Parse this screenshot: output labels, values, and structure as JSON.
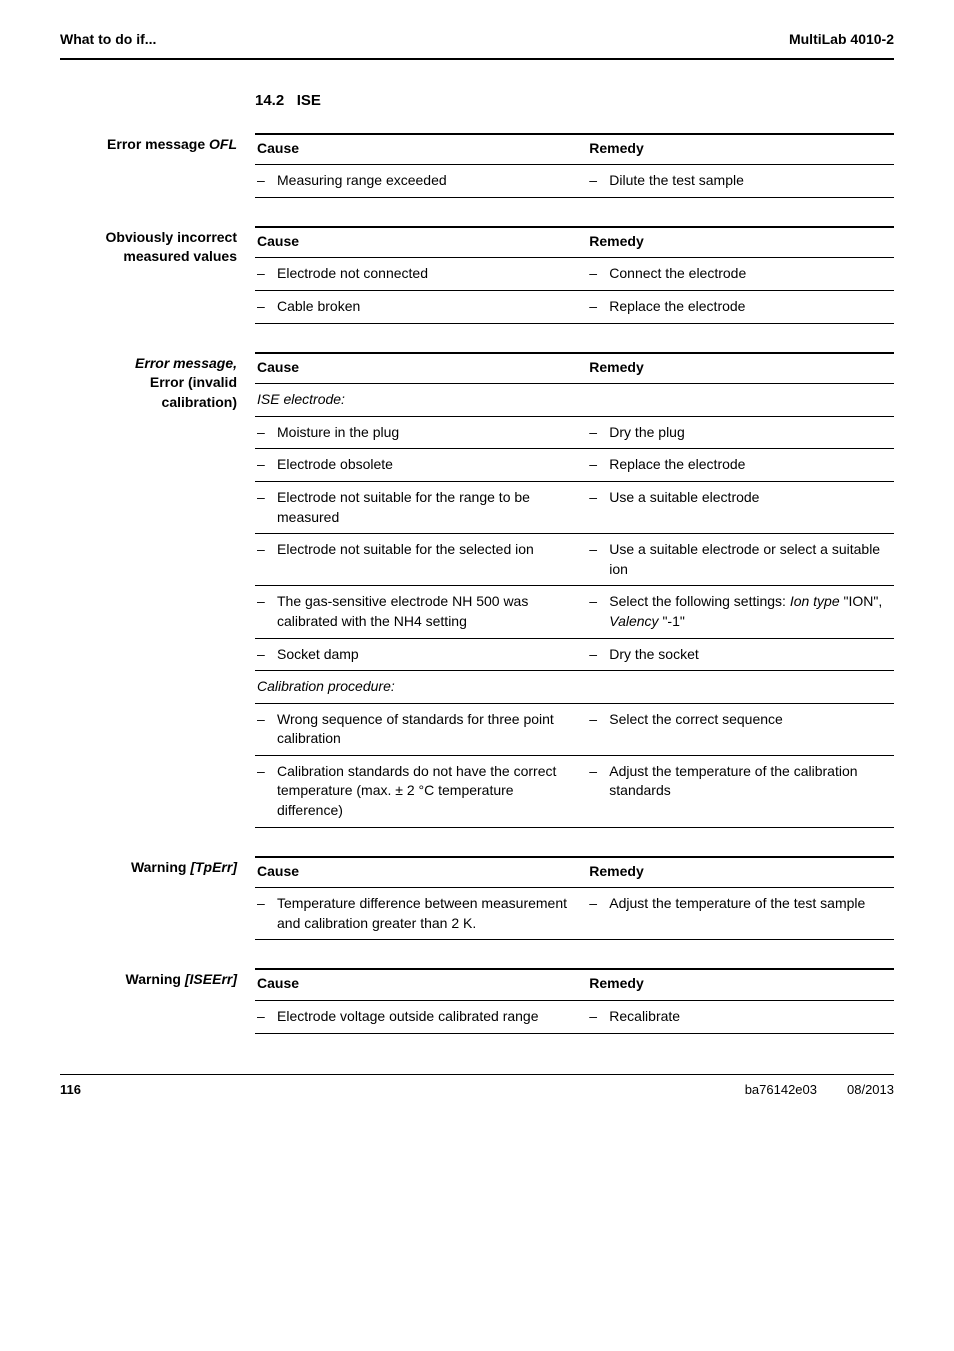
{
  "header": {
    "left": "What to do if...",
    "right": "MultiLab 4010-2"
  },
  "section": {
    "number": "14.2",
    "title": "ISE"
  },
  "blocks": [
    {
      "side_html": "Error message <span class=\"italic\">OFL</span>",
      "headers": {
        "cause": "Cause",
        "remedy": "Remedy"
      },
      "rows": [
        {
          "cause": "Measuring range exceeded",
          "remedy": "Dilute the test sample"
        }
      ]
    },
    {
      "side_html": "Obviously incorrect measured values",
      "headers": {
        "cause": "Cause",
        "remedy": "Remedy"
      },
      "rows": [
        {
          "cause": "Electrode not connected",
          "remedy": "Connect the electrode"
        },
        {
          "cause": "Cable broken",
          "remedy": "Replace the electrode"
        }
      ]
    },
    {
      "side_html": "<span class=\"italic\">Error message,</span><br><span class=\"italic\"></span>Error (invalid calibration)",
      "side_lines": [
        {
          "text": "Error message,",
          "italic": true
        },
        {
          "text": "Error (invalid",
          "italic": false
        },
        {
          "text": "calibration)",
          "italic": false
        }
      ],
      "headers": {
        "cause": "Cause",
        "remedy": "Remedy"
      },
      "subhead1": "ISE electrode:",
      "rows1": [
        {
          "cause": "Moisture in the plug",
          "remedy": "Dry the plug"
        },
        {
          "cause": "Electrode obsolete",
          "remedy": "Replace the electrode"
        },
        {
          "cause": "Electrode not suitable for the range to be measured",
          "remedy": "Use a suitable electrode"
        },
        {
          "cause": "Electrode not suitable for the selected ion",
          "remedy": "Use a suitable electrode or select a suitable ion"
        },
        {
          "cause_html": "The gas-sensitive electrode NH 500 was calibrated with the NH4 setting",
          "remedy_html": "Select the following settings: <span class=\"em\">Ion type</span> \"ION\", <span class=\"em\">Valency</span> \"-1\""
        },
        {
          "cause": "Socket damp",
          "remedy": "Dry the socket"
        }
      ],
      "subhead2": "Calibration procedure:",
      "rows2": [
        {
          "cause": "Wrong sequence of standards for three point calibration",
          "remedy": "Select the correct sequence"
        },
        {
          "cause": "Calibration standards do not have the correct temperature (max. ± 2 °C temperature difference)",
          "remedy": "Adjust the temperature of the calibration standards"
        }
      ]
    },
    {
      "side_html": "Warning <span class=\"italic\">[TpErr]</span>",
      "headers": {
        "cause": "Cause",
        "remedy": "Remedy"
      },
      "rows": [
        {
          "cause": "Temperature difference between measurement and calibration greater than 2 K.",
          "remedy": "Adjust the temperature of the test sample"
        }
      ]
    },
    {
      "side_html": "Warning <span class=\"italic\">[ISEErr]</span>",
      "headers": {
        "cause": "Cause",
        "remedy": "Remedy"
      },
      "rows": [
        {
          "cause": "Electrode voltage outside calibrated range",
          "remedy": "Recalibrate"
        }
      ]
    }
  ],
  "footer": {
    "page": "116",
    "doc": "ba76142e03",
    "date": "08/2013"
  }
}
